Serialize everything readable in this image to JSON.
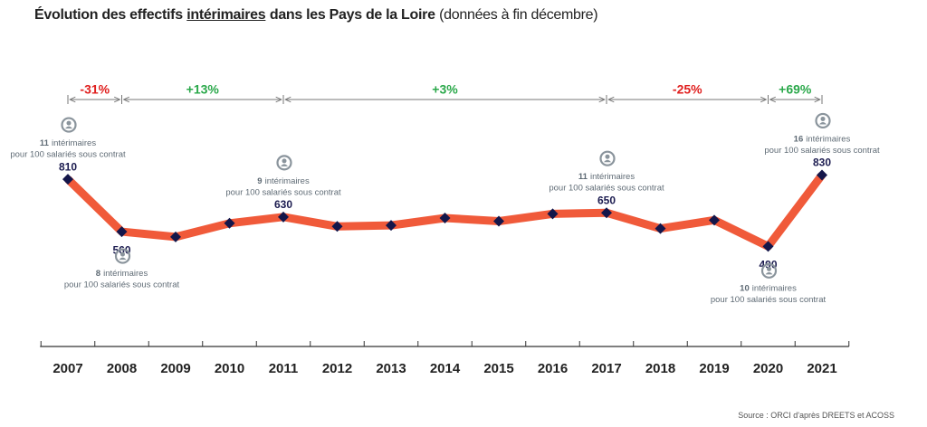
{
  "chart_data": {
    "type": "line",
    "title": [
      "Évolution des effectifs",
      "intérimaires",
      "dans les Pays de la Loire"
    ],
    "subtitle": "(données à fin décembre)",
    "source": "Source : ORCI d'après DREETS et ACOSS",
    "categories": [
      "2007",
      "2008",
      "2009",
      "2010",
      "2011",
      "2012",
      "2013",
      "2014",
      "2015",
      "2016",
      "2017",
      "2018",
      "2019",
      "2020",
      "2021"
    ],
    "series": [
      {
        "color": "#f05a3a",
        "marker_color": "#14164a",
        "values": [
          810,
          560,
          535,
          600,
          630,
          585,
          590,
          625,
          610,
          645,
          650,
          575,
          615,
          490,
          830
        ]
      }
    ],
    "labeled_points": [
      "2007",
      "2008",
      "2011",
      "2017",
      "2020",
      "2021"
    ],
    "annotations": [
      {
        "category": "2007",
        "count": 11,
        "text": "intérimaires",
        "subtext": "pour 100 salariés sous contrat"
      },
      {
        "category": "2008",
        "count": 8,
        "text": "intérimaires",
        "subtext": "pour 100 salariés sous contrat"
      },
      {
        "category": "2011",
        "count": 9,
        "text": "intérimaires",
        "subtext": "pour 100 salariés sous contrat"
      },
      {
        "category": "2017",
        "count": 11,
        "text": "intérimaires",
        "subtext": "pour 100 salariés sous contrat"
      },
      {
        "category": "2020",
        "count": 10,
        "text": "intérimaires",
        "subtext": "pour 100 salariés sous contrat"
      },
      {
        "category": "2021",
        "count": 16,
        "text": "intérimaires",
        "subtext": "pour 100 salariés sous contrat"
      }
    ],
    "periods": [
      {
        "start": "2007",
        "end": "2008",
        "change": {
          "value": -31,
          "label": "-31%"
        },
        "color": "#e0201f"
      },
      {
        "start": "2008",
        "end": "2011",
        "change": {
          "value": 13,
          "label": "+13%"
        },
        "color": "#2aa84a"
      },
      {
        "start": "2011",
        "end": "2017",
        "change": {
          "value": 3,
          "label": "+3%"
        },
        "color": "#2aa84a"
      },
      {
        "start": "2017",
        "end": "2020",
        "change": {
          "value": -25,
          "label": "-25%"
        },
        "color": "#e0201f"
      },
      {
        "start": "2020",
        "end": "2021",
        "change": {
          "value": 69,
          "label": "+69%"
        },
        "color": "#2aa84a"
      }
    ]
  }
}
